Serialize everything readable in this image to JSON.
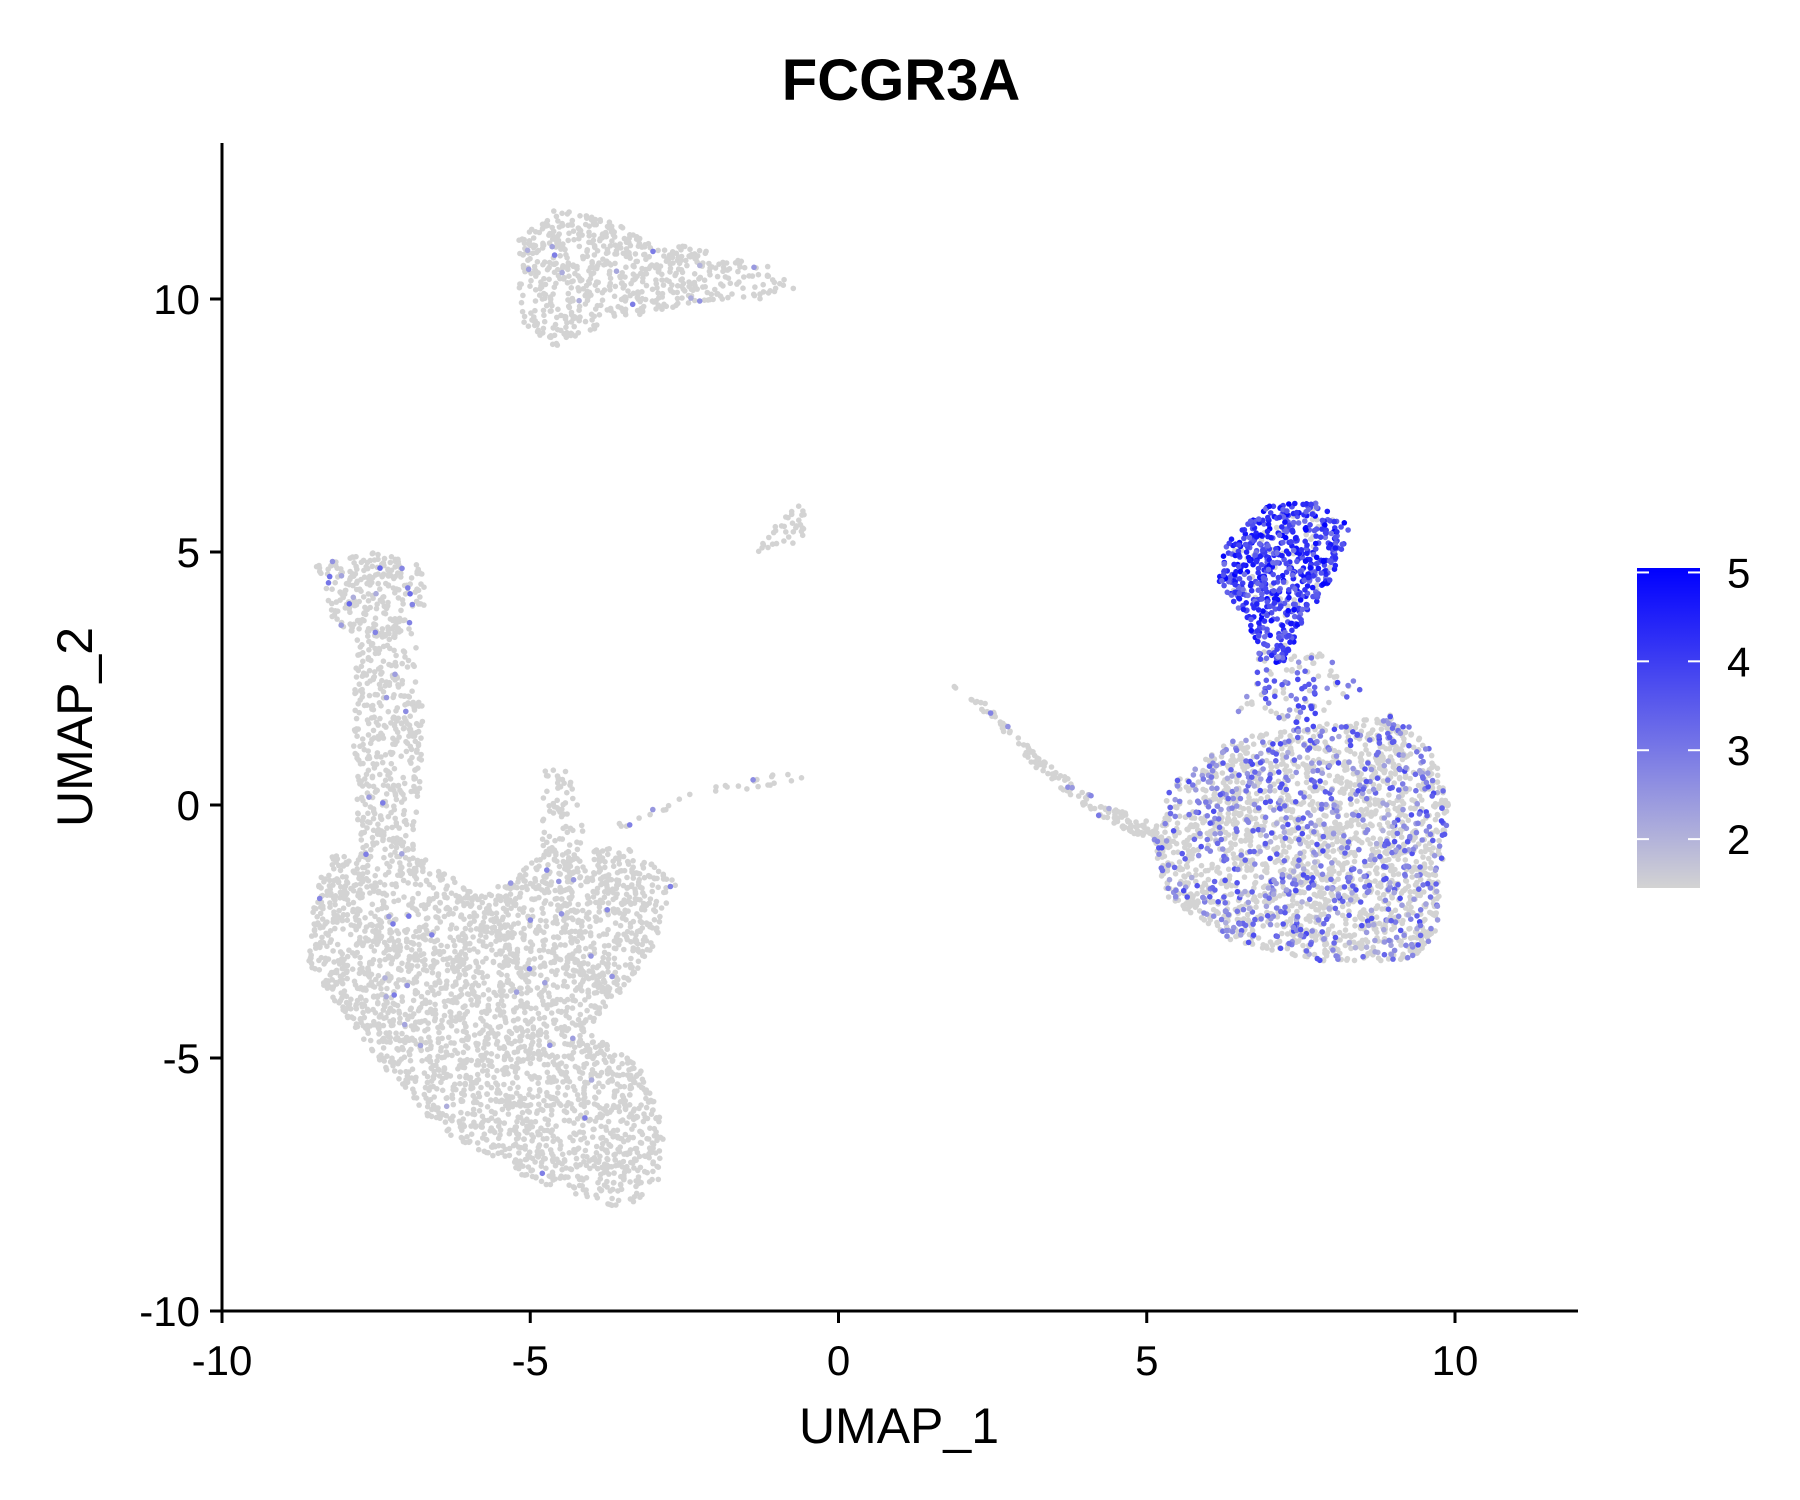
{
  "chart_data": {
    "type": "scatter",
    "title": "FCGR3A",
    "xlabel": "UMAP_1",
    "ylabel": "UMAP_2",
    "xlim": [
      -10,
      12
    ],
    "ylim": [
      -10,
      13
    ],
    "xticks": [
      -10,
      -5,
      0,
      5,
      10
    ],
    "xtick_labels": [
      "-10",
      "-5",
      "0",
      "5",
      "10"
    ],
    "yticks": [
      -10,
      -5,
      0,
      5,
      10
    ],
    "ytick_labels": [
      "-10",
      "-5",
      "0",
      "5",
      "10"
    ],
    "grid": false,
    "legend": {
      "placement": "right",
      "type": "continuous-colorbar",
      "range": [
        1.45,
        5.05
      ],
      "ticks": [
        2,
        3,
        4,
        5
      ],
      "tick_labels": [
        "2",
        "3",
        "4",
        "5"
      ],
      "low_color": "#d3d3d3",
      "high_color": "#0000ff"
    },
    "point_color_default": "#d3d3d3",
    "clusters": [
      {
        "polygon": [
          [
            -5.2,
            11.2
          ],
          [
            -4.6,
            11.8
          ],
          [
            -3.9,
            11.6
          ],
          [
            -3.0,
            11.2
          ],
          [
            -2.0,
            10.9
          ],
          [
            -1.0,
            10.6
          ],
          [
            -0.7,
            10.2
          ],
          [
            -1.2,
            10.0
          ],
          [
            -2.0,
            10.0
          ],
          [
            -3.2,
            9.7
          ],
          [
            -4.2,
            9.3
          ],
          [
            -4.6,
            9.0
          ],
          [
            -5.1,
            9.5
          ],
          [
            -5.2,
            10.3
          ]
        ],
        "n": 650,
        "expr_frac": 0.01,
        "expr_range": [
          2,
          3
        ]
      },
      {
        "polygon": [
          [
            -1.1,
            5.5
          ],
          [
            -0.6,
            6.0
          ],
          [
            -0.5,
            5.4
          ],
          [
            -0.9,
            5.0
          ],
          [
            -1.3,
            5.0
          ]
        ],
        "n": 35,
        "expr_frac": 0.0,
        "expr_range": [
          2,
          3
        ]
      },
      {
        "polygon": [
          [
            -8.5,
            4.8
          ],
          [
            -7.5,
            5.0
          ],
          [
            -6.7,
            4.7
          ],
          [
            -6.7,
            3.8
          ],
          [
            -7.2,
            3.3
          ],
          [
            -8.0,
            3.4
          ],
          [
            -8.4,
            4.0
          ]
        ],
        "n": 240,
        "expr_frac": 0.08,
        "expr_range": [
          2,
          3.5
        ]
      },
      {
        "polygon": [
          [
            -7.8,
            3.6
          ],
          [
            -6.9,
            3.6
          ],
          [
            -6.7,
            1.5
          ],
          [
            -6.9,
            -1.0
          ],
          [
            -7.8,
            -1.0
          ],
          [
            -7.9,
            1.5
          ]
        ],
        "n": 420,
        "expr_frac": 0.02,
        "expr_range": [
          2,
          3
        ]
      },
      {
        "polygon": [
          [
            -8.3,
            -1.0
          ],
          [
            -6.8,
            -1.0
          ],
          [
            -5.8,
            -1.8
          ],
          [
            -4.8,
            -1.0
          ],
          [
            -3.5,
            -0.8
          ],
          [
            -2.6,
            -1.5
          ],
          [
            -3.0,
            -2.8
          ],
          [
            -4.0,
            -4.5
          ],
          [
            -3.2,
            -5.2
          ],
          [
            -2.8,
            -6.5
          ],
          [
            -2.9,
            -7.6
          ],
          [
            -3.6,
            -8.0
          ],
          [
            -5.0,
            -7.4
          ],
          [
            -6.5,
            -6.4
          ],
          [
            -7.5,
            -5.0
          ],
          [
            -8.6,
            -3.2
          ],
          [
            -8.5,
            -1.8
          ]
        ],
        "n": 3000,
        "expr_frac": 0.01,
        "expr_range": [
          2,
          3
        ]
      },
      {
        "polygon": [
          [
            -4.8,
            0.8
          ],
          [
            -4.4,
            0.8
          ],
          [
            -4.1,
            -0.5
          ],
          [
            -4.3,
            -1.5
          ],
          [
            -4.8,
            -1.2
          ]
        ],
        "n": 80,
        "expr_frac": 0.0,
        "expr_range": [
          2,
          3
        ]
      },
      {
        "polygon": [
          [
            -3.6,
            -0.3
          ],
          [
            -2.4,
            0.3
          ],
          [
            -0.6,
            0.7
          ],
          [
            -0.6,
            0.5
          ],
          [
            -2.4,
            0.1
          ],
          [
            -3.6,
            -0.5
          ]
        ],
        "n": 30,
        "expr_frac": 0.15,
        "expr_range": [
          2,
          3
        ]
      },
      {
        "polygon": [
          [
            1.8,
            2.4
          ],
          [
            2.4,
            1.8
          ],
          [
            3.3,
            0.6
          ],
          [
            4.3,
            -0.3
          ],
          [
            5.3,
            -0.9
          ],
          [
            5.3,
            -0.4
          ],
          [
            4.3,
            0.0
          ],
          [
            3.3,
            0.9
          ],
          [
            2.4,
            2.0
          ]
        ],
        "n": 170,
        "expr_frac": 0.03,
        "expr_range": [
          2,
          3
        ]
      },
      {
        "polygon": [
          [
            6.3,
            5.2
          ],
          [
            6.9,
            5.9
          ],
          [
            7.7,
            6.0
          ],
          [
            8.3,
            5.5
          ],
          [
            8.0,
            4.5
          ],
          [
            7.6,
            3.7
          ],
          [
            7.2,
            2.8
          ],
          [
            6.9,
            2.8
          ],
          [
            6.6,
            3.7
          ],
          [
            6.1,
            4.5
          ]
        ],
        "n": 650,
        "expr_frac": 0.88,
        "expr_range": [
          3,
          5
        ]
      },
      {
        "polygon": [
          [
            6.7,
            3.0
          ],
          [
            7.9,
            3.0
          ],
          [
            8.5,
            2.3
          ],
          [
            7.5,
            1.6
          ],
          [
            6.4,
            1.8
          ]
        ],
        "n": 110,
        "expr_frac": 0.5,
        "expr_range": [
          2.5,
          4
        ]
      },
      {
        "polygon": [
          [
            5.4,
            0.4
          ],
          [
            6.4,
            1.3
          ],
          [
            7.8,
            1.6
          ],
          [
            9.0,
            1.8
          ],
          [
            9.6,
            1.2
          ],
          [
            9.9,
            0.0
          ],
          [
            9.7,
            -2.5
          ],
          [
            9.3,
            -3.1
          ],
          [
            7.8,
            -3.1
          ],
          [
            6.4,
            -2.7
          ],
          [
            5.3,
            -1.8
          ],
          [
            5.1,
            -0.6
          ]
        ],
        "n": 2400,
        "expr_frac": 0.28,
        "expr_range": [
          2,
          3.8
        ]
      }
    ]
  }
}
